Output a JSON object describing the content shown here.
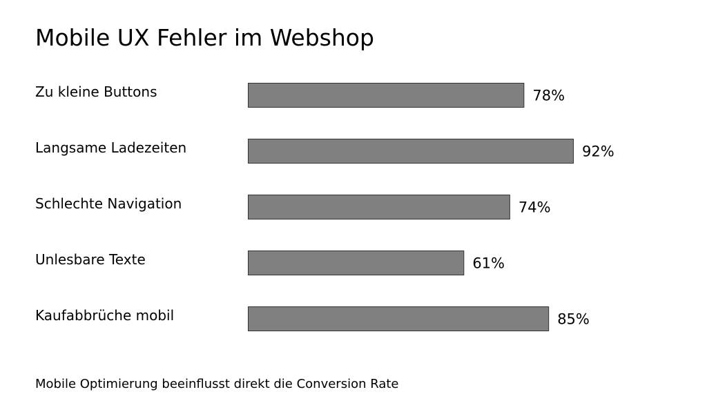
{
  "chart_data": {
    "type": "bar",
    "orientation": "horizontal",
    "title": "Mobile UX Fehler im Webshop",
    "categories": [
      "Zu kleine Buttons",
      "Langsame Ladezeiten",
      "Schlechte Navigation",
      "Unlesbare Texte",
      "Kaufabbrüche mobil"
    ],
    "values": [
      78,
      92,
      74,
      61,
      85
    ],
    "value_labels": [
      "78%",
      "92%",
      "74%",
      "61%",
      "85%"
    ],
    "unit": "%",
    "xlim": [
      0,
      100
    ],
    "grid": false,
    "legend": "none",
    "colors": {
      "bar_fill": "#808080",
      "bar_stroke": "#333333",
      "text": "#000000",
      "background": "#ffffff"
    }
  },
  "footnote": "Mobile Optimierung beeinflusst direkt die Conversion Rate"
}
